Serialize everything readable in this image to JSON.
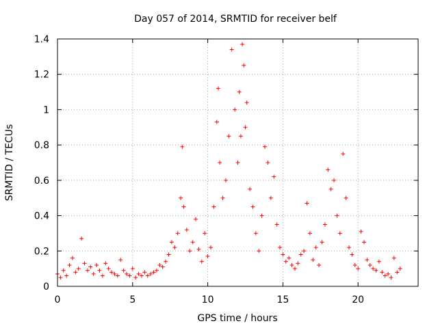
{
  "chart_data": {
    "type": "scatter",
    "title": "Day 057 of 2014, SRMTID for receiver belf",
    "xlabel": "GPS time / hours",
    "ylabel": "SRMTID / TECUs",
    "xlim": [
      0,
      24
    ],
    "ylim": [
      0,
      1.4
    ],
    "xticks": [
      0,
      5,
      10,
      15,
      20
    ],
    "xtick_labels": [
      "0",
      "5",
      "10",
      "15",
      "20"
    ],
    "yticks": [
      0,
      0.2,
      0.4,
      0.6,
      0.8,
      1.0,
      1.2,
      1.4
    ],
    "ytick_labels": [
      "0",
      "0.2",
      "0.4",
      "0.6",
      "0.8",
      "1",
      "1.2",
      "1.4"
    ],
    "grid": true,
    "marker": "+",
    "color": "#ff0000",
    "series": [
      {
        "name": "SRMTID",
        "x": [
          0.0,
          0.2,
          0.4,
          0.6,
          0.8,
          1.0,
          1.2,
          1.4,
          1.6,
          1.8,
          2.0,
          2.2,
          2.4,
          2.6,
          2.8,
          3.0,
          3.2,
          3.4,
          3.6,
          3.8,
          4.0,
          4.2,
          4.4,
          4.6,
          4.8,
          5.0,
          5.2,
          5.4,
          5.6,
          5.8,
          6.0,
          6.2,
          6.4,
          6.6,
          6.8,
          7.0,
          7.2,
          7.4,
          7.6,
          7.8,
          8.0,
          8.2,
          8.3,
          8.4,
          8.6,
          8.8,
          9.0,
          9.2,
          9.4,
          9.6,
          9.8,
          10.0,
          10.2,
          10.4,
          10.6,
          10.7,
          10.8,
          11.0,
          11.2,
          11.4,
          11.6,
          11.8,
          12.0,
          12.1,
          12.2,
          12.3,
          12.4,
          12.5,
          12.6,
          12.8,
          13.0,
          13.2,
          13.4,
          13.6,
          13.8,
          14.0,
          14.2,
          14.4,
          14.6,
          14.8,
          15.0,
          15.2,
          15.4,
          15.6,
          15.8,
          16.0,
          16.2,
          16.4,
          16.6,
          16.8,
          17.0,
          17.2,
          17.4,
          17.6,
          17.8,
          18.0,
          18.2,
          18.4,
          18.6,
          18.8,
          19.0,
          19.2,
          19.4,
          19.6,
          19.8,
          20.0,
          20.2,
          20.4,
          20.6,
          20.8,
          21.0,
          21.2,
          21.4,
          21.6,
          21.8,
          22.0,
          22.2,
          22.4,
          22.6,
          22.8
        ],
        "y": [
          0.07,
          0.05,
          0.09,
          0.06,
          0.12,
          0.16,
          0.08,
          0.1,
          0.27,
          0.13,
          0.09,
          0.11,
          0.07,
          0.12,
          0.09,
          0.06,
          0.13,
          0.1,
          0.08,
          0.07,
          0.06,
          0.15,
          0.09,
          0.07,
          0.06,
          0.1,
          0.05,
          0.07,
          0.06,
          0.08,
          0.06,
          0.07,
          0.08,
          0.09,
          0.12,
          0.11,
          0.14,
          0.18,
          0.25,
          0.22,
          0.3,
          0.5,
          0.79,
          0.45,
          0.32,
          0.2,
          0.25,
          0.38,
          0.21,
          0.14,
          0.3,
          0.17,
          0.22,
          0.45,
          0.93,
          1.12,
          0.7,
          0.5,
          0.6,
          0.85,
          1.34,
          1.0,
          0.7,
          1.1,
          0.85,
          1.37,
          1.25,
          0.9,
          1.04,
          0.55,
          0.45,
          0.3,
          0.2,
          0.4,
          0.79,
          0.7,
          0.5,
          0.62,
          0.35,
          0.22,
          0.18,
          0.14,
          0.16,
          0.12,
          0.1,
          0.13,
          0.18,
          0.2,
          0.47,
          0.3,
          0.15,
          0.22,
          0.12,
          0.25,
          0.35,
          0.66,
          0.55,
          0.6,
          0.4,
          0.3,
          0.75,
          0.5,
          0.22,
          0.18,
          0.12,
          0.1,
          0.31,
          0.25,
          0.15,
          0.12,
          0.1,
          0.09,
          0.14,
          0.08,
          0.06,
          0.07,
          0.05,
          0.16,
          0.08,
          0.1
        ]
      }
    ]
  }
}
